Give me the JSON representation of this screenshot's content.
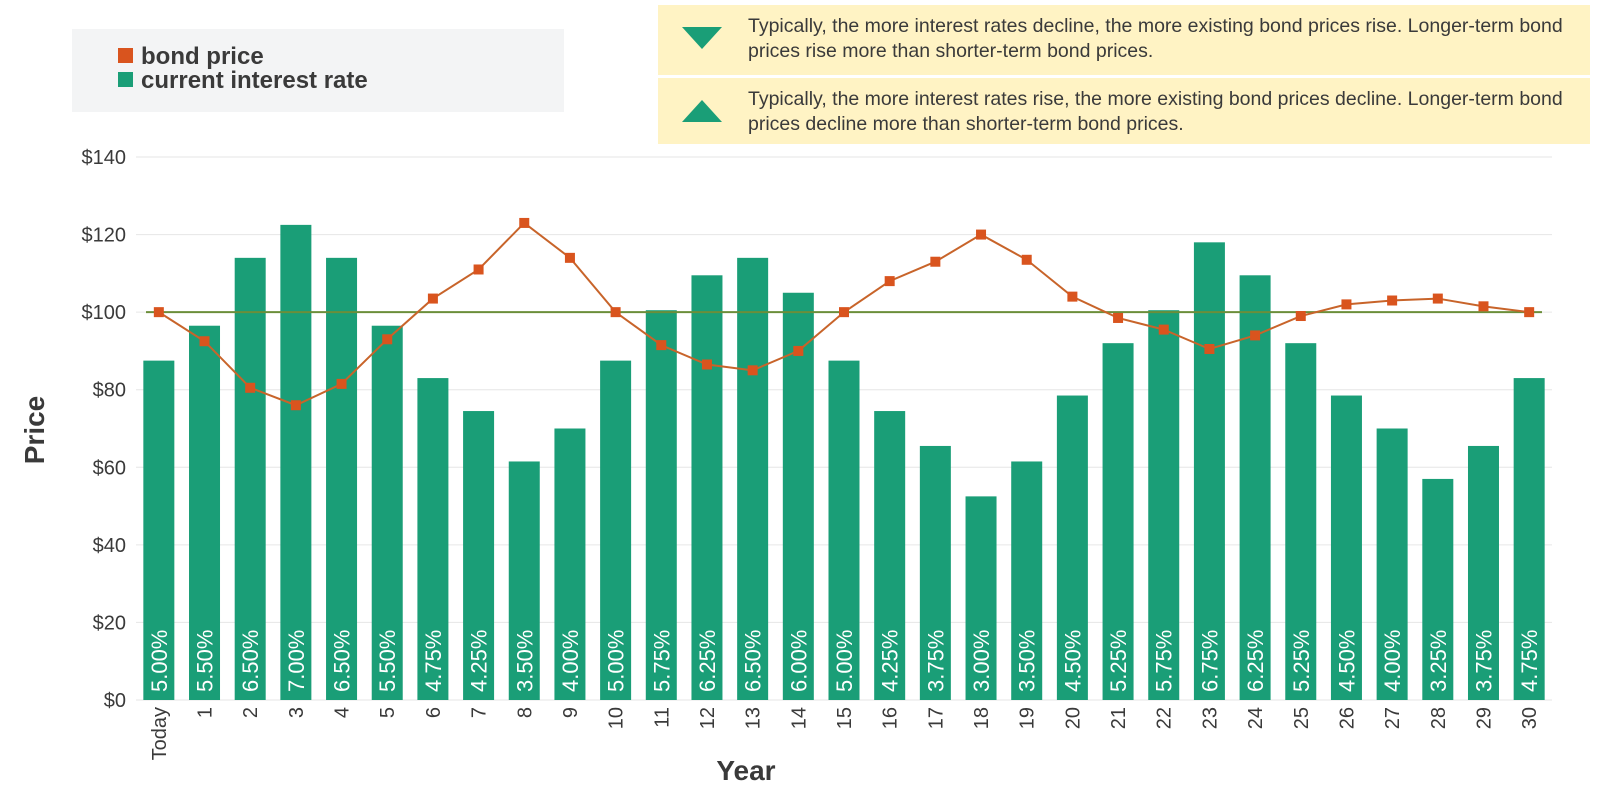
{
  "legend": {
    "items": [
      {
        "label": "bond price",
        "color": "#d9541e"
      },
      {
        "label": "current interest rate",
        "color": "#1a9e77"
      }
    ]
  },
  "notes": [
    {
      "icon": "triangle-down-icon",
      "text": "Typically, the more interest rates decline, the more existing bond prices rise. Longer-term bond prices rise more than shorter-term bond prices."
    },
    {
      "icon": "triangle-up-icon",
      "text": "Typically, the more interest rates rise, the more existing bond prices decline. Longer-term bond prices decline more than shorter-term bond prices."
    }
  ],
  "chart_data": {
    "type": "bar",
    "xlabel": "Year",
    "ylabel": "Price",
    "ylim": [
      0,
      140
    ],
    "yticks": [
      "$0",
      "$20",
      "$40",
      "$60",
      "$80",
      "$100",
      "$120",
      "$140"
    ],
    "reference_line": 100,
    "categories": [
      "Today",
      "1",
      "2",
      "3",
      "4",
      "5",
      "6",
      "7",
      "8",
      "9",
      "10",
      "11",
      "12",
      "13",
      "14",
      "15",
      "16",
      "17",
      "18",
      "19",
      "20",
      "21",
      "22",
      "23",
      "24",
      "25",
      "26",
      "27",
      "28",
      "29",
      "30"
    ],
    "series": [
      {
        "name": "current interest rate",
        "type": "bar",
        "color": "#1a9e77",
        "values": [
          87.5,
          96.5,
          114,
          122.5,
          114,
          96.5,
          83,
          74.5,
          61.5,
          70,
          87.5,
          100.5,
          109.5,
          114,
          105,
          87.5,
          74.5,
          65.5,
          52.5,
          61.5,
          78.5,
          92,
          100.5,
          118,
          109.5,
          92,
          78.5,
          70,
          57,
          65.5,
          83
        ],
        "labels": [
          "5.00%",
          "5.50%",
          "6.50%",
          "7.00%",
          "6.50%",
          "5.50%",
          "4.75%",
          "4.25%",
          "3.50%",
          "4.00%",
          "5.00%",
          "5.75%",
          "6.25%",
          "6.50%",
          "6.00%",
          "5.00%",
          "4.25%",
          "3.75%",
          "3.00%",
          "3.50%",
          "4.50%",
          "5.25%",
          "5.75%",
          "6.75%",
          "6.25%",
          "5.25%",
          "4.50%",
          "4.00%",
          "3.25%",
          "3.75%",
          "4.75%"
        ]
      },
      {
        "name": "bond price",
        "type": "line",
        "color": "#d9541e",
        "values": [
          100,
          92.5,
          80.5,
          76,
          81.5,
          93,
          103.5,
          111,
          123,
          114,
          100,
          91.5,
          86.5,
          85,
          90,
          100,
          108,
          113,
          120,
          113.5,
          104,
          98.5,
          95.5,
          90.5,
          94,
          99,
          102,
          103,
          103.5,
          101.5,
          100
        ]
      }
    ],
    "colors": {
      "line": "#c8642a",
      "grid": "#e6e6e6",
      "reference": "#6b8e3a"
    }
  }
}
